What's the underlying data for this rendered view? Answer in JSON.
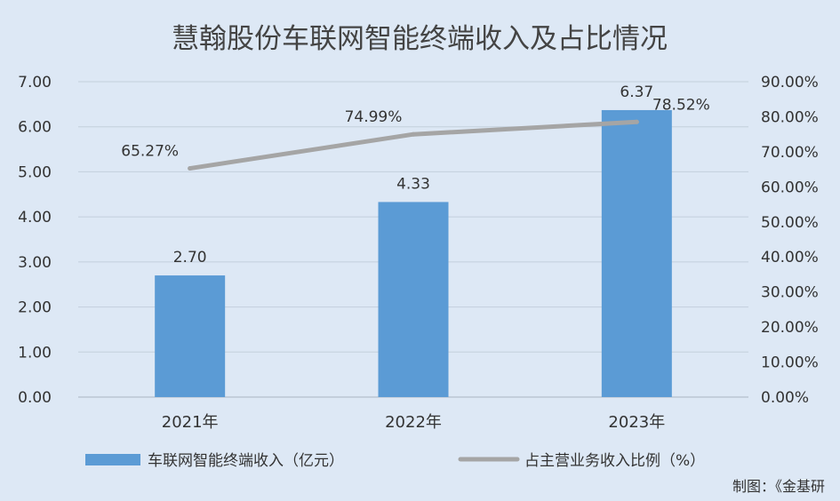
{
  "chart_data": {
    "type": "bar",
    "title": "慧翰股份车联网智能终端收入及占比情况",
    "categories": [
      "2021年",
      "2022年",
      "2023年"
    ],
    "series": [
      {
        "name": "车联网智能终端收入（亿元）",
        "type": "bar",
        "axis": "left",
        "values": [
          2.7,
          4.33,
          6.37
        ],
        "labels": [
          "2.70",
          "4.33",
          "6.37"
        ],
        "color": "#5b9bd5"
      },
      {
        "name": "占主营业务收入比例（%）",
        "type": "line",
        "axis": "right",
        "values": [
          65.27,
          74.99,
          78.52
        ],
        "labels": [
          "65.27%",
          "74.99%",
          "78.52%"
        ],
        "color": "#a5a5a5"
      }
    ],
    "y_left": {
      "min": 0,
      "max": 7,
      "step": 1,
      "ticks": [
        "0.00",
        "1.00",
        "2.00",
        "3.00",
        "4.00",
        "5.00",
        "6.00",
        "7.00"
      ]
    },
    "y_right": {
      "min": 0,
      "max": 90,
      "step": 10,
      "ticks": [
        "0.00%",
        "10.00%",
        "20.00%",
        "30.00%",
        "40.00%",
        "50.00%",
        "60.00%",
        "70.00%",
        "80.00%",
        "90.00%"
      ]
    },
    "grid": true,
    "legend": "bottom"
  },
  "credit": "制图：《金基研"
}
